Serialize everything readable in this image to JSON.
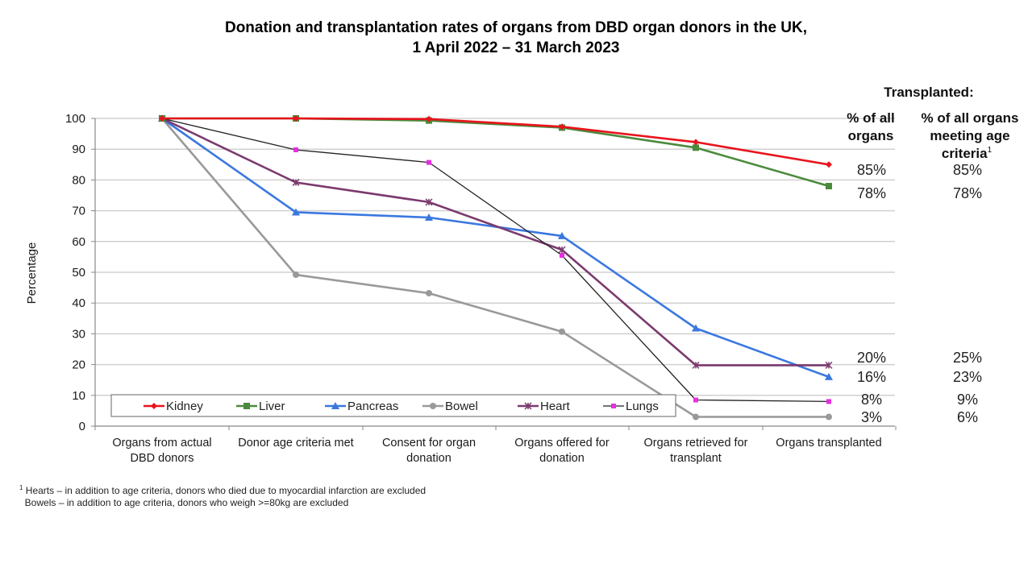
{
  "chart_data": {
    "type": "line",
    "title": "Donation and transplantation rates of organs from DBD organ donors in the UK,",
    "subtitle": "1 April 2022 – 31 March 2023",
    "xlabel": "",
    "ylabel": "Percentage",
    "ylim": [
      0,
      100
    ],
    "yticks": [
      "0",
      "10",
      "20",
      "30",
      "40",
      "50",
      "60",
      "70",
      "80",
      "90",
      "100"
    ],
    "grid": true,
    "legend_position": "bottom-left",
    "categories": [
      [
        "Organs from actual",
        "DBD donors"
      ],
      [
        "Donor age criteria met"
      ],
      [
        "Consent for organ",
        "donation"
      ],
      [
        "Organs offered for",
        "donation"
      ],
      [
        "Organs retrieved for",
        "transplant"
      ],
      [
        "Organs transplanted"
      ]
    ],
    "series": [
      {
        "name": "Kidney",
        "color": "#e8141c",
        "marker": "diamond",
        "values": [
          100,
          100,
          99.8,
          97.3,
          92.3,
          85
        ]
      },
      {
        "name": "Liver",
        "color": "#4a8a3c",
        "marker": "square",
        "values": [
          100,
          100,
          99.3,
          97.0,
          90.5,
          78
        ]
      },
      {
        "name": "Pancreas",
        "color": "#3a78e0",
        "marker": "triangle",
        "values": [
          100,
          69.5,
          67.8,
          61.8,
          31.8,
          16
        ]
      },
      {
        "name": "Bowel",
        "color": "#999999",
        "marker": "circle",
        "values": [
          100,
          49.2,
          43.2,
          30.7,
          3,
          3
        ]
      },
      {
        "name": "Heart",
        "color": "#7b3a6e",
        "marker": "x",
        "values": [
          100,
          79.2,
          72.8,
          57.3,
          19.8,
          19.8
        ]
      },
      {
        "name": "Lungs",
        "color": "#222222",
        "marker_color": "#e62ee0",
        "marker": "dot",
        "values": [
          100,
          89.8,
          85.7,
          55.5,
          8.5,
          8
        ]
      }
    ],
    "side_table": {
      "heading": "Transplanted:",
      "col1_header": [
        "% of all",
        "organs"
      ],
      "col2_header": [
        "% of all organs",
        "meeting age",
        "criteria"
      ],
      "col2_superscript": "1",
      "rows": [
        {
          "organ": "Kidney",
          "all": "85%",
          "age_criteria": "85%"
        },
        {
          "organ": "Liver",
          "all": "78%",
          "age_criteria": "78%"
        },
        {
          "organ": "Heart",
          "all": "20%",
          "age_criteria": "25%"
        },
        {
          "organ": "Pancreas",
          "all": "16%",
          "age_criteria": "23%"
        },
        {
          "organ": "Lungs",
          "all": "8%",
          "age_criteria": "9%"
        },
        {
          "organ": "Bowel",
          "all": "3%",
          "age_criteria": "6%"
        }
      ]
    }
  },
  "footnote": {
    "marker": "1",
    "line1": "Hearts – in addition to age criteria, donors who died due to myocardial infarction are excluded",
    "line2": "Bowels – in addition to age criteria, donors who weigh >=80kg are excluded"
  }
}
